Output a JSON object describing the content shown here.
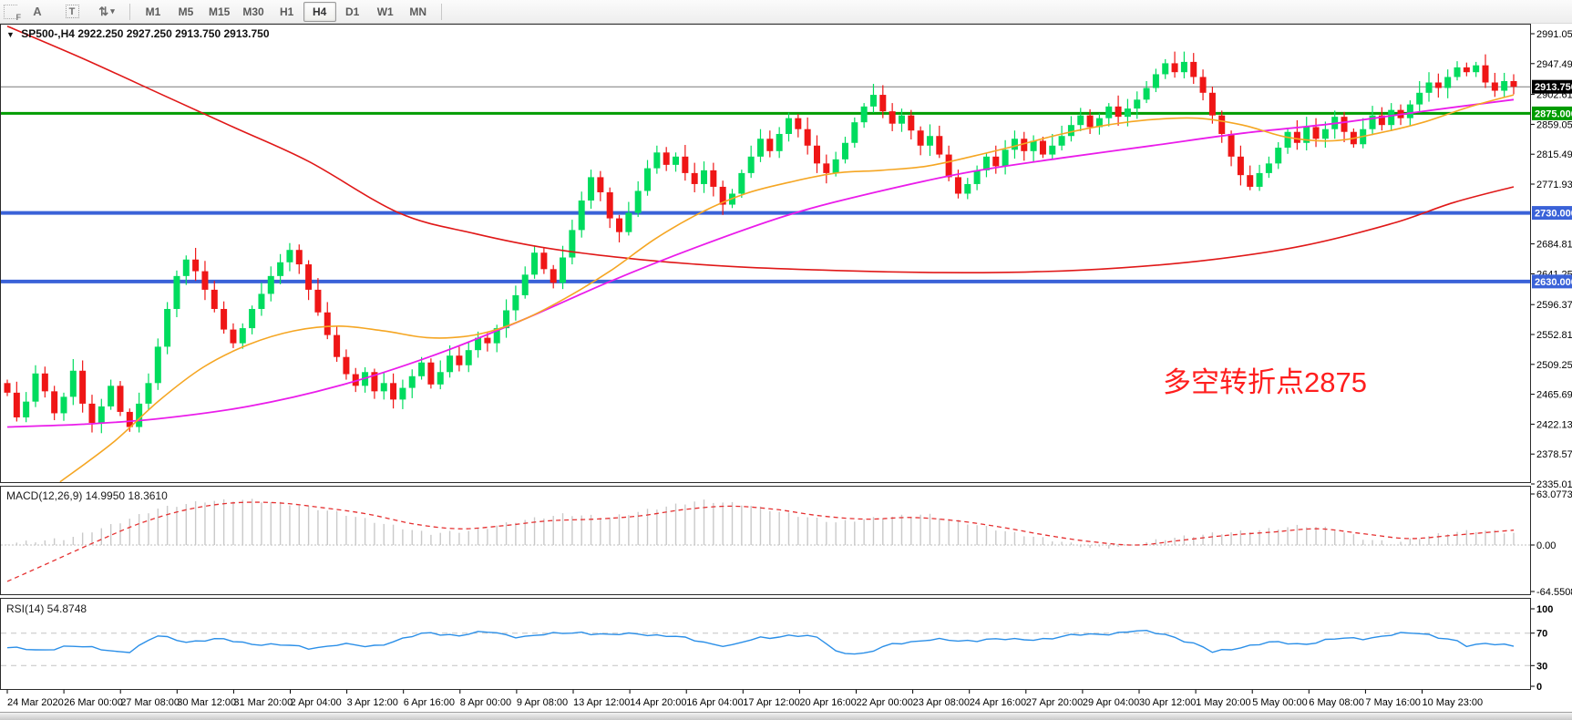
{
  "toolbar": {
    "tools": [
      {
        "name": "templates-f-icon",
        "glyph": "F"
      },
      {
        "name": "label-a-icon",
        "glyph": "A"
      },
      {
        "name": "text-box-icon",
        "glyph": "T"
      },
      {
        "name": "arrow-tools-icon",
        "glyph": "⇅"
      },
      {
        "name": "dropdown-caret-icon",
        "glyph": "▾"
      }
    ],
    "timeframes": [
      "M1",
      "M5",
      "M15",
      "M30",
      "H1",
      "H4",
      "D1",
      "W1",
      "MN"
    ],
    "active_timeframe": "H4"
  },
  "chart": {
    "title": {
      "dropdown_glyph": "▼",
      "symbol": "SP500-,H4",
      "quote": "2922.250 2927.250 2913.750 2913.750"
    },
    "annotation": {
      "text": "多空转折点2875",
      "color": "#ff1e1e"
    }
  },
  "chart_data": {
    "type": "candlestick+indicators",
    "symbol": "SP500-,H4",
    "timeframe": "H4",
    "ohlc_display": {
      "open": "2922.250",
      "high": "2927.250",
      "low": "2913.750",
      "close": "2913.750"
    },
    "current_price": 2913.75,
    "price_axis": {
      "range": [
        2335.01,
        2991.05
      ],
      "ticks": [
        "2991.050",
        "2947.490",
        "2902.610",
        "2859.050",
        "2815.490",
        "2771.930",
        "2684.810",
        "2641.250",
        "2596.370",
        "2552.810",
        "2509.250",
        "2465.690",
        "2422.130",
        "2378.570",
        "2335.010"
      ]
    },
    "levels": [
      {
        "price": 2913.75,
        "label": "2913.750",
        "line_color": "#7a7a7a",
        "badge_bg": "#000000",
        "line_width": 1
      },
      {
        "price": 2875.0,
        "label": "2875.000",
        "line_color": "#009c00",
        "badge_bg": "#009c00",
        "line_width": 3
      },
      {
        "price": 2730.0,
        "label": "2730.000",
        "line_color": "#3a62d8",
        "badge_bg": "#3a62d8",
        "line_width": 4
      },
      {
        "price": 2630.0,
        "label": "2630.000",
        "line_color": "#3a62d8",
        "badge_bg": "#3a62d8",
        "line_width": 4
      }
    ],
    "x_labels": [
      "24 Mar 2020",
      "26 Mar 00:00",
      "27 Mar 08:00",
      "30 Mar 12:00",
      "31 Mar 20:00",
      "2 Apr 04:00",
      "3 Apr 12:00",
      "6 Apr 16:00",
      "8 Apr 00:00",
      "9 Apr 08:00",
      "13 Apr 12:00",
      "14 Apr 20:00",
      "16 Apr 04:00",
      "17 Apr 12:00",
      "20 Apr 16:00",
      "22 Apr 00:00",
      "23 Apr 08:00",
      "24 Apr 16:00",
      "27 Apr 20:00",
      "29 Apr 04:00",
      "30 Apr 12:00",
      "1 May 20:00",
      "5 May 00:00",
      "6 May 08:00",
      "7 May 16:00",
      "10 May 23:00"
    ],
    "candle_colors": {
      "up": "#00dc5e",
      "down": "#ef1616"
    },
    "first_open": 2482,
    "candles_closes": [
      2468,
      2432,
      2455,
      2496,
      2470,
      2438,
      2462,
      2500,
      2452,
      2424,
      2448,
      2478,
      2440,
      2418,
      2452,
      2482,
      2535,
      2590,
      2638,
      2662,
      2645,
      2618,
      2590,
      2560,
      2540,
      2562,
      2590,
      2612,
      2638,
      2658,
      2676,
      2655,
      2618,
      2585,
      2552,
      2520,
      2495,
      2478,
      2498,
      2470,
      2482,
      2458,
      2475,
      2492,
      2512,
      2480,
      2498,
      2522,
      2508,
      2530,
      2548,
      2540,
      2562,
      2588,
      2610,
      2640,
      2672,
      2648,
      2628,
      2665,
      2705,
      2748,
      2782,
      2760,
      2722,
      2702,
      2730,
      2762,
      2795,
      2818,
      2800,
      2812,
      2788,
      2772,
      2792,
      2768,
      2742,
      2758,
      2788,
      2812,
      2838,
      2820,
      2845,
      2868,
      2852,
      2828,
      2802,
      2788,
      2808,
      2832,
      2862,
      2885,
      2902,
      2878,
      2860,
      2872,
      2850,
      2828,
      2842,
      2815,
      2782,
      2758,
      2772,
      2792,
      2812,
      2798,
      2822,
      2838,
      2820,
      2835,
      2815,
      2828,
      2842,
      2858,
      2872,
      2855,
      2868,
      2885,
      2870,
      2882,
      2895,
      2912,
      2932,
      2948,
      2935,
      2950,
      2928,
      2905,
      2872,
      2845,
      2812,
      2785,
      2768,
      2788,
      2802,
      2825,
      2848,
      2832,
      2855,
      2838,
      2852,
      2870,
      2848,
      2830,
      2852,
      2872,
      2858,
      2880,
      2868,
      2888,
      2905,
      2920,
      2912,
      2928,
      2942,
      2935,
      2945,
      2920,
      2908,
      2922,
      2913.75
    ],
    "moving_averages": [
      {
        "name": "ma-slow-red",
        "color": "#e01818",
        "width": 1.6,
        "points": [
          [
            0,
            3002
          ],
          [
            0.05,
            2955
          ],
          [
            0.1,
            2905
          ],
          [
            0.15,
            2855
          ],
          [
            0.2,
            2805
          ],
          [
            0.26,
            2730
          ],
          [
            0.31,
            2700
          ],
          [
            0.36,
            2678
          ],
          [
            0.42,
            2662
          ],
          [
            0.48,
            2652
          ],
          [
            0.55,
            2646
          ],
          [
            0.62,
            2643
          ],
          [
            0.68,
            2644
          ],
          [
            0.74,
            2650
          ],
          [
            0.8,
            2662
          ],
          [
            0.86,
            2682
          ],
          [
            0.92,
            2715
          ],
          [
            0.96,
            2745
          ],
          [
            1,
            2768
          ]
        ]
      },
      {
        "name": "ma-mid-magenta",
        "color": "#ea1cea",
        "width": 1.8,
        "points": [
          [
            0,
            2418
          ],
          [
            0.05,
            2422
          ],
          [
            0.1,
            2430
          ],
          [
            0.16,
            2448
          ],
          [
            0.22,
            2478
          ],
          [
            0.28,
            2520
          ],
          [
            0.34,
            2572
          ],
          [
            0.4,
            2630
          ],
          [
            0.46,
            2682
          ],
          [
            0.52,
            2728
          ],
          [
            0.58,
            2762
          ],
          [
            0.64,
            2790
          ],
          [
            0.7,
            2810
          ],
          [
            0.76,
            2828
          ],
          [
            0.82,
            2846
          ],
          [
            0.88,
            2860
          ],
          [
            0.94,
            2878
          ],
          [
            1,
            2895
          ]
        ]
      },
      {
        "name": "ma-fast-orange",
        "color": "#f5a623",
        "width": 1.6,
        "points": [
          [
            0.035,
            2338
          ],
          [
            0.07,
            2395
          ],
          [
            0.1,
            2455
          ],
          [
            0.13,
            2505
          ],
          [
            0.16,
            2538
          ],
          [
            0.19,
            2558
          ],
          [
            0.22,
            2565
          ],
          [
            0.25,
            2558
          ],
          [
            0.28,
            2548
          ],
          [
            0.31,
            2552
          ],
          [
            0.34,
            2572
          ],
          [
            0.37,
            2605
          ],
          [
            0.4,
            2645
          ],
          [
            0.43,
            2692
          ],
          [
            0.46,
            2730
          ],
          [
            0.49,
            2758
          ],
          [
            0.52,
            2775
          ],
          [
            0.55,
            2788
          ],
          [
            0.58,
            2792
          ],
          [
            0.61,
            2798
          ],
          [
            0.64,
            2812
          ],
          [
            0.67,
            2828
          ],
          [
            0.7,
            2845
          ],
          [
            0.73,
            2858
          ],
          [
            0.76,
            2866
          ],
          [
            0.79,
            2868
          ],
          [
            0.82,
            2858
          ],
          [
            0.85,
            2840
          ],
          [
            0.88,
            2835
          ],
          [
            0.91,
            2846
          ],
          [
            0.94,
            2862
          ],
          [
            0.97,
            2884
          ],
          [
            1,
            2902
          ]
        ]
      }
    ],
    "macd": {
      "label": "MACD(12,26,9) 14.9950 18.3610",
      "main_value": 14.995,
      "signal_value": 18.361,
      "axis_ticks": [
        "63.0773",
        "0.00",
        "-64.5508"
      ],
      "hist_color": "#c9c9c9",
      "signal_color": "#e53030",
      "hist_keypoints": [
        [
          0,
          2
        ],
        [
          0.04,
          8
        ],
        [
          0.07,
          25
        ],
        [
          0.1,
          45
        ],
        [
          0.13,
          54
        ],
        [
          0.16,
          56
        ],
        [
          0.19,
          50
        ],
        [
          0.22,
          40
        ],
        [
          0.25,
          26
        ],
        [
          0.28,
          14
        ],
        [
          0.31,
          18
        ],
        [
          0.34,
          30
        ],
        [
          0.37,
          38
        ],
        [
          0.4,
          34
        ],
        [
          0.43,
          45
        ],
        [
          0.46,
          55
        ],
        [
          0.49,
          50
        ],
        [
          0.52,
          38
        ],
        [
          0.55,
          28
        ],
        [
          0.58,
          34
        ],
        [
          0.61,
          38
        ],
        [
          0.64,
          26
        ],
        [
          0.67,
          14
        ],
        [
          0.7,
          4
        ],
        [
          0.72,
          -4
        ],
        [
          0.74,
          -2
        ],
        [
          0.77,
          8
        ],
        [
          0.8,
          14
        ],
        [
          0.83,
          18
        ],
        [
          0.86,
          24
        ],
        [
          0.88,
          20
        ],
        [
          0.9,
          8
        ],
        [
          0.92,
          2
        ],
        [
          0.94,
          10
        ],
        [
          0.96,
          16
        ],
        [
          0.98,
          18
        ],
        [
          1,
          15
        ]
      ],
      "signal_keypoints": [
        [
          0,
          -45
        ],
        [
          0.03,
          -20
        ],
        [
          0.06,
          5
        ],
        [
          0.09,
          28
        ],
        [
          0.12,
          44
        ],
        [
          0.15,
          52
        ],
        [
          0.18,
          52
        ],
        [
          0.21,
          46
        ],
        [
          0.24,
          38
        ],
        [
          0.27,
          26
        ],
        [
          0.3,
          20
        ],
        [
          0.33,
          24
        ],
        [
          0.36,
          30
        ],
        [
          0.39,
          32
        ],
        [
          0.42,
          36
        ],
        [
          0.45,
          44
        ],
        [
          0.48,
          48
        ],
        [
          0.51,
          44
        ],
        [
          0.54,
          36
        ],
        [
          0.57,
          32
        ],
        [
          0.6,
          34
        ],
        [
          0.63,
          30
        ],
        [
          0.66,
          22
        ],
        [
          0.69,
          12
        ],
        [
          0.72,
          4
        ],
        [
          0.75,
          0
        ],
        [
          0.78,
          6
        ],
        [
          0.81,
          12
        ],
        [
          0.84,
          16
        ],
        [
          0.87,
          20
        ],
        [
          0.9,
          14
        ],
        [
          0.93,
          8
        ],
        [
          0.96,
          12
        ],
        [
          1,
          18.36
        ]
      ]
    },
    "rsi": {
      "label": "RSI(14) 54.8748",
      "value": 54.8748,
      "axis_ticks": [
        "100",
        "70",
        "30",
        "0"
      ],
      "levels": [
        70,
        30
      ],
      "color": "#2b8fe8",
      "keypoints": [
        [
          0,
          52
        ],
        [
          0.02,
          48
        ],
        [
          0.04,
          55
        ],
        [
          0.06,
          50
        ],
        [
          0.08,
          47
        ],
        [
          0.1,
          66
        ],
        [
          0.12,
          60
        ],
        [
          0.14,
          62
        ],
        [
          0.16,
          58
        ],
        [
          0.18,
          55
        ],
        [
          0.2,
          52
        ],
        [
          0.22,
          56
        ],
        [
          0.24,
          53
        ],
        [
          0.26,
          62
        ],
        [
          0.28,
          70
        ],
        [
          0.3,
          68
        ],
        [
          0.32,
          71
        ],
        [
          0.34,
          66
        ],
        [
          0.36,
          68
        ],
        [
          0.38,
          72
        ],
        [
          0.4,
          67
        ],
        [
          0.42,
          70
        ],
        [
          0.44,
          66
        ],
        [
          0.46,
          60
        ],
        [
          0.48,
          54
        ],
        [
          0.5,
          64
        ],
        [
          0.52,
          68
        ],
        [
          0.54,
          63
        ],
        [
          0.55,
          48
        ],
        [
          0.57,
          44
        ],
        [
          0.59,
          58
        ],
        [
          0.61,
          62
        ],
        [
          0.63,
          60
        ],
        [
          0.65,
          63
        ],
        [
          0.67,
          61
        ],
        [
          0.69,
          64
        ],
        [
          0.71,
          67
        ],
        [
          0.73,
          70
        ],
        [
          0.75,
          72
        ],
        [
          0.77,
          69
        ],
        [
          0.79,
          55
        ],
        [
          0.8,
          46
        ],
        [
          0.82,
          54
        ],
        [
          0.84,
          58
        ],
        [
          0.86,
          57
        ],
        [
          0.88,
          62
        ],
        [
          0.9,
          64
        ],
        [
          0.92,
          68
        ],
        [
          0.94,
          70
        ],
        [
          0.95,
          66
        ],
        [
          0.96,
          62
        ],
        [
          0.97,
          52
        ],
        [
          0.98,
          57
        ],
        [
          0.99,
          58
        ],
        [
          1,
          55
        ]
      ]
    }
  }
}
